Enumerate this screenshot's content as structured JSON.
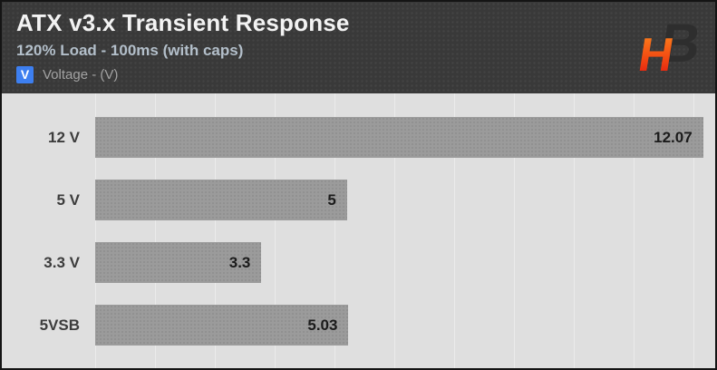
{
  "header": {
    "title": "ATX v3.x Transient Response",
    "subtitle": "120% Load - 100ms (with caps)",
    "legend": {
      "swatch_letter": "V",
      "label": "Voltage - (V)"
    }
  },
  "logo": {
    "h": "H",
    "b": "B"
  },
  "colors": {
    "legend_swatch": "#3d7ff0",
    "header_bg": "#393939",
    "plot_bg": "#dfdfdf",
    "bar": "#9b9b9b",
    "title_text": "#f3f3f3",
    "subtitle_text": "#b3bfca",
    "logo_orange": "#ff8a1e",
    "logo_red": "#e01010",
    "logo_dark": "#2e2e2e",
    "value_text": "#1b1b1b",
    "category_text": "#3c3c3c"
  },
  "chart_data": {
    "type": "bar",
    "orientation": "horizontal",
    "title": "ATX v3.x Transient Response",
    "subtitle": "120% Load - 100ms (with caps)",
    "series_name": "Voltage - (V)",
    "categories": [
      "12 V",
      "5 V",
      "3.3 V",
      "5VSB"
    ],
    "values": [
      12.07,
      5,
      3.3,
      5.03
    ],
    "value_labels": [
      "12.07",
      "5",
      "3.3",
      "5.03"
    ],
    "xlim": [
      0,
      12.31
    ],
    "grid": "vertical",
    "gridline_spacing_px": 66,
    "legend_position": "header-top-left",
    "value_label_position": "inside-end"
  }
}
